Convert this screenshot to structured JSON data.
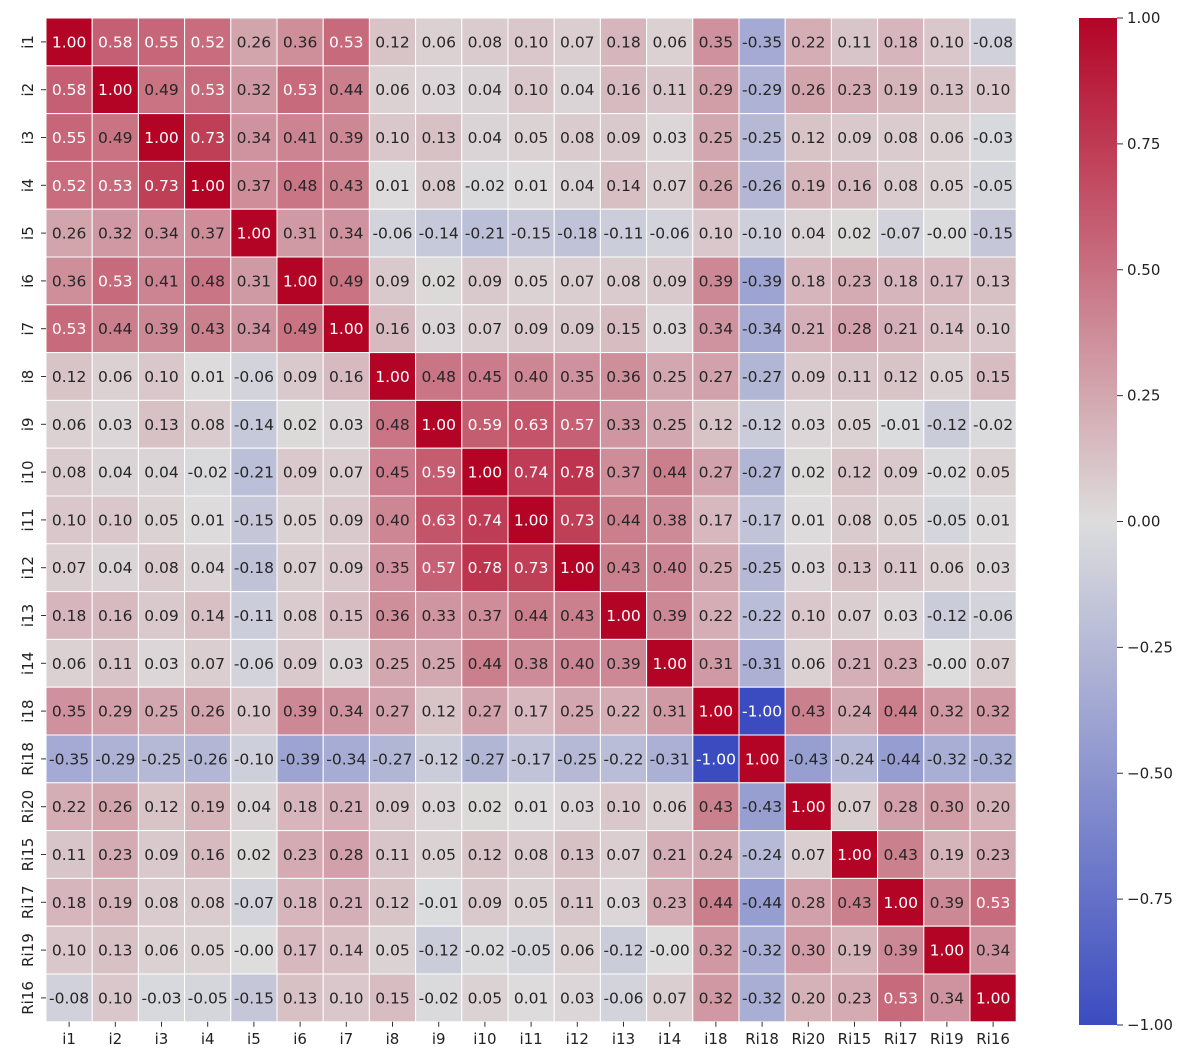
{
  "chart_data": {
    "type": "heatmap",
    "title": "",
    "xlabel": "",
    "ylabel": "",
    "x_labels": [
      "i1",
      "i2",
      "i3",
      "i4",
      "i5",
      "i6",
      "i7",
      "i8",
      "i9",
      "i10",
      "i11",
      "i12",
      "i13",
      "i14",
      "i18",
      "Ri18",
      "Ri20",
      "Ri15",
      "Ri17",
      "Ri19",
      "Ri16"
    ],
    "y_labels": [
      "i1",
      "i2",
      "i3",
      "i4",
      "i5",
      "i6",
      "i7",
      "i8",
      "i9",
      "i10",
      "i11",
      "i12",
      "i13",
      "i14",
      "i18",
      "Ri18",
      "Ri20",
      "Ri15",
      "Ri17",
      "Ri19",
      "Ri16"
    ],
    "values": [
      [
        1.0,
        0.58,
        0.55,
        0.52,
        0.26,
        0.36,
        0.53,
        0.12,
        0.06,
        0.08,
        0.1,
        0.07,
        0.18,
        0.06,
        0.35,
        -0.35,
        0.22,
        0.11,
        0.18,
        0.1,
        -0.08
      ],
      [
        0.58,
        1.0,
        0.49,
        0.53,
        0.32,
        0.53,
        0.44,
        0.06,
        0.03,
        0.04,
        0.1,
        0.04,
        0.16,
        0.11,
        0.29,
        -0.29,
        0.26,
        0.23,
        0.19,
        0.13,
        0.1
      ],
      [
        0.55,
        0.49,
        1.0,
        0.73,
        0.34,
        0.41,
        0.39,
        0.1,
        0.13,
        0.04,
        0.05,
        0.08,
        0.09,
        0.03,
        0.25,
        -0.25,
        0.12,
        0.09,
        0.08,
        0.06,
        -0.03
      ],
      [
        0.52,
        0.53,
        0.73,
        1.0,
        0.37,
        0.48,
        0.43,
        0.01,
        0.08,
        -0.02,
        0.01,
        0.04,
        0.14,
        0.07,
        0.26,
        -0.26,
        0.19,
        0.16,
        0.08,
        0.05,
        -0.05
      ],
      [
        0.26,
        0.32,
        0.34,
        0.37,
        1.0,
        0.31,
        0.34,
        -0.06,
        -0.14,
        -0.21,
        -0.15,
        -0.18,
        -0.11,
        -0.06,
        0.1,
        -0.1,
        0.04,
        0.02,
        -0.07,
        -0.0,
        -0.15
      ],
      [
        0.36,
        0.53,
        0.41,
        0.48,
        0.31,
        1.0,
        0.49,
        0.09,
        0.02,
        0.09,
        0.05,
        0.07,
        0.08,
        0.09,
        0.39,
        -0.39,
        0.18,
        0.23,
        0.18,
        0.17,
        0.13
      ],
      [
        0.53,
        0.44,
        0.39,
        0.43,
        0.34,
        0.49,
        1.0,
        0.16,
        0.03,
        0.07,
        0.09,
        0.09,
        0.15,
        0.03,
        0.34,
        -0.34,
        0.21,
        0.28,
        0.21,
        0.14,
        0.1
      ],
      [
        0.12,
        0.06,
        0.1,
        0.01,
        -0.06,
        0.09,
        0.16,
        1.0,
        0.48,
        0.45,
        0.4,
        0.35,
        0.36,
        0.25,
        0.27,
        -0.27,
        0.09,
        0.11,
        0.12,
        0.05,
        0.15
      ],
      [
        0.06,
        0.03,
        0.13,
        0.08,
        -0.14,
        0.02,
        0.03,
        0.48,
        1.0,
        0.59,
        0.63,
        0.57,
        0.33,
        0.25,
        0.12,
        -0.12,
        0.03,
        0.05,
        -0.01,
        -0.12,
        -0.02
      ],
      [
        0.08,
        0.04,
        0.04,
        -0.02,
        -0.21,
        0.09,
        0.07,
        0.45,
        0.59,
        1.0,
        0.74,
        0.78,
        0.37,
        0.44,
        0.27,
        -0.27,
        0.02,
        0.12,
        0.09,
        -0.02,
        0.05
      ],
      [
        0.1,
        0.1,
        0.05,
        0.01,
        -0.15,
        0.05,
        0.09,
        0.4,
        0.63,
        0.74,
        1.0,
        0.73,
        0.44,
        0.38,
        0.17,
        -0.17,
        0.01,
        0.08,
        0.05,
        -0.05,
        0.01
      ],
      [
        0.07,
        0.04,
        0.08,
        0.04,
        -0.18,
        0.07,
        0.09,
        0.35,
        0.57,
        0.78,
        0.73,
        1.0,
        0.43,
        0.4,
        0.25,
        -0.25,
        0.03,
        0.13,
        0.11,
        0.06,
        0.03
      ],
      [
        0.18,
        0.16,
        0.09,
        0.14,
        -0.11,
        0.08,
        0.15,
        0.36,
        0.33,
        0.37,
        0.44,
        0.43,
        1.0,
        0.39,
        0.22,
        -0.22,
        0.1,
        0.07,
        0.03,
        -0.12,
        -0.06
      ],
      [
        0.06,
        0.11,
        0.03,
        0.07,
        -0.06,
        0.09,
        0.03,
        0.25,
        0.25,
        0.44,
        0.38,
        0.4,
        0.39,
        1.0,
        0.31,
        -0.31,
        0.06,
        0.21,
        0.23,
        -0.0,
        0.07
      ],
      [
        0.35,
        0.29,
        0.25,
        0.26,
        0.1,
        0.39,
        0.34,
        0.27,
        0.12,
        0.27,
        0.17,
        0.25,
        0.22,
        0.31,
        1.0,
        -1.0,
        0.43,
        0.24,
        0.44,
        0.32,
        0.32
      ],
      [
        -0.35,
        -0.29,
        -0.25,
        -0.26,
        -0.1,
        -0.39,
        -0.34,
        -0.27,
        -0.12,
        -0.27,
        -0.17,
        -0.25,
        -0.22,
        -0.31,
        -1.0,
        1.0,
        -0.43,
        -0.24,
        -0.44,
        -0.32,
        -0.32
      ],
      [
        0.22,
        0.26,
        0.12,
        0.19,
        0.04,
        0.18,
        0.21,
        0.09,
        0.03,
        0.02,
        0.01,
        0.03,
        0.1,
        0.06,
        0.43,
        -0.43,
        1.0,
        0.07,
        0.28,
        0.3,
        0.2
      ],
      [
        0.11,
        0.23,
        0.09,
        0.16,
        0.02,
        0.23,
        0.28,
        0.11,
        0.05,
        0.12,
        0.08,
        0.13,
        0.07,
        0.21,
        0.24,
        -0.24,
        0.07,
        1.0,
        0.43,
        0.19,
        0.23
      ],
      [
        0.18,
        0.19,
        0.08,
        0.08,
        -0.07,
        0.18,
        0.21,
        0.12,
        -0.01,
        0.09,
        0.05,
        0.11,
        0.03,
        0.23,
        0.44,
        -0.44,
        0.28,
        0.43,
        1.0,
        0.39,
        0.53
      ],
      [
        0.1,
        0.13,
        0.06,
        0.05,
        -0.0,
        0.17,
        0.14,
        0.05,
        -0.12,
        -0.02,
        -0.05,
        0.06,
        -0.12,
        -0.0,
        0.32,
        -0.32,
        0.3,
        0.19,
        0.39,
        1.0,
        0.34
      ],
      [
        -0.08,
        0.1,
        -0.03,
        -0.05,
        -0.15,
        0.13,
        0.1,
        0.15,
        -0.02,
        0.05,
        0.01,
        0.03,
        -0.06,
        0.07,
        0.32,
        -0.32,
        0.2,
        0.23,
        0.53,
        0.34,
        1.0
      ]
    ],
    "value_format": "2 decimals",
    "vmin": -1.0,
    "vmax": 1.0,
    "colormap": "coolwarm",
    "colormap_stops": [
      "#3b4cc0",
      "#dddddd",
      "#b40426"
    ],
    "colorbar_ticks": [
      1.0,
      0.75,
      0.5,
      0.25,
      0.0,
      -0.25,
      -0.5,
      -0.75,
      -1.0
    ],
    "colorbar_tick_labels": [
      "1.00",
      "0.75",
      "0.50",
      "0.25",
      "0.00",
      "−0.25",
      "−0.50",
      "−0.75",
      "−1.00"
    ],
    "colorbar_placement": "right",
    "grid": true,
    "grid_color": "#ffffff"
  }
}
